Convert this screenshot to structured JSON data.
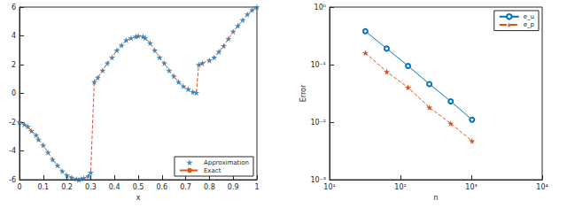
{
  "chart_data": [
    {
      "type": "scatter",
      "xlabel": "x",
      "x": [
        0,
        0.02,
        0.035,
        0.05,
        0.07,
        0.08,
        0.1,
        0.12,
        0.14,
        0.16,
        0.18,
        0.2,
        0.22,
        0.24,
        0.25,
        0.26,
        0.27,
        0.29,
        0.3,
        0.315,
        0.33,
        0.35,
        0.37,
        0.39,
        0.41,
        0.43,
        0.45,
        0.47,
        0.49,
        0.5,
        0.52,
        0.53,
        0.55,
        0.57,
        0.59,
        0.61,
        0.63,
        0.65,
        0.67,
        0.69,
        0.71,
        0.73,
        0.745,
        0.755,
        0.77,
        0.8,
        0.82,
        0.84,
        0.86,
        0.88,
        0.9,
        0.92,
        0.94,
        0.96,
        0.98,
        1
      ],
      "series": [
        {
          "name": "Approximation",
          "type": "scatter",
          "marker": "star",
          "color": "#0072bd",
          "values": [
            -2,
            -2.15,
            -2.3,
            -2.6,
            -2.9,
            -3.2,
            -3.6,
            -4.1,
            -4.6,
            -5,
            -5.4,
            -5.7,
            -5.85,
            -5.95,
            -6,
            -5.95,
            -5.9,
            -5.75,
            -5.5,
            0.8,
            1.1,
            1.6,
            2.1,
            2.5,
            3,
            3.35,
            3.7,
            3.85,
            3.95,
            4,
            3.95,
            3.85,
            3.5,
            3,
            2.5,
            2.1,
            1.6,
            1.2,
            0.8,
            0.5,
            0.3,
            0.1,
            0.05,
            2,
            2.1,
            2.3,
            2.5,
            2.9,
            3.3,
            3.8,
            4.3,
            4.7,
            5.1,
            5.5,
            5.8,
            6
          ]
        },
        {
          "name": "Exact",
          "type": "line",
          "line_style": "dashed",
          "marker": "none",
          "color": "#d95319",
          "values": [
            -2,
            -2.15,
            -2.3,
            -2.6,
            -2.9,
            -3.2,
            -3.6,
            -4.1,
            -4.6,
            -5,
            -5.4,
            -5.7,
            -5.85,
            -5.95,
            -6,
            -5.95,
            -5.9,
            -5.75,
            -5.5,
            0.8,
            1.1,
            1.6,
            2.1,
            2.5,
            3,
            3.35,
            3.7,
            3.85,
            3.95,
            4,
            3.95,
            3.85,
            3.5,
            3,
            2.5,
            2.1,
            1.6,
            1.2,
            0.8,
            0.5,
            0.3,
            0.1,
            0.05,
            2,
            2.1,
            2.3,
            2.5,
            2.9,
            3.3,
            3.8,
            4.3,
            4.7,
            5.1,
            5.5,
            5.8,
            6
          ]
        }
      ],
      "xlim": [
        0,
        1
      ],
      "xticks": [
        0,
        0.1,
        0.2,
        0.3,
        0.4,
        0.5,
        0.6,
        0.7,
        0.8,
        0.9,
        1
      ],
      "ylim": [
        -6,
        6
      ],
      "yticks": [
        -6,
        -4,
        -2,
        0,
        2,
        4,
        6
      ],
      "grid": false,
      "legend": "lower right"
    },
    {
      "type": "line",
      "xlabel": "n",
      "ylabel": "Error",
      "log": true,
      "x": [
        32,
        64,
        128,
        256,
        512,
        1024
      ],
      "series": [
        {
          "name": "e_u",
          "marker": "circle",
          "line_style": "solid",
          "color": "#0072bd",
          "values": [
            0.38,
            0.19,
            0.095,
            0.046,
            0.023,
            0.011
          ]
        },
        {
          "name": "e_p",
          "marker": "star",
          "line_style": "dashed",
          "color": "#d95319",
          "values": [
            0.16,
            0.075,
            0.04,
            0.018,
            0.0095,
            0.0047
          ]
        }
      ],
      "xlim": [
        10,
        10000
      ],
      "xticks": [
        {
          "value": 10,
          "label": "10¹"
        },
        {
          "value": 100,
          "label": "10²"
        },
        {
          "value": 1000,
          "label": "10³"
        },
        {
          "value": 10000,
          "label": "10⁴"
        }
      ],
      "ylim": [
        0.001,
        1
      ],
      "yticks": [
        {
          "value": 0.001,
          "label": "10⁻³"
        },
        {
          "value": 0.01,
          "label": "10⁻²"
        },
        {
          "value": 0.1,
          "label": "10⁻¹"
        },
        {
          "value": 1,
          "label": "10⁰"
        }
      ],
      "grid": false,
      "legend": "upper right"
    }
  ]
}
